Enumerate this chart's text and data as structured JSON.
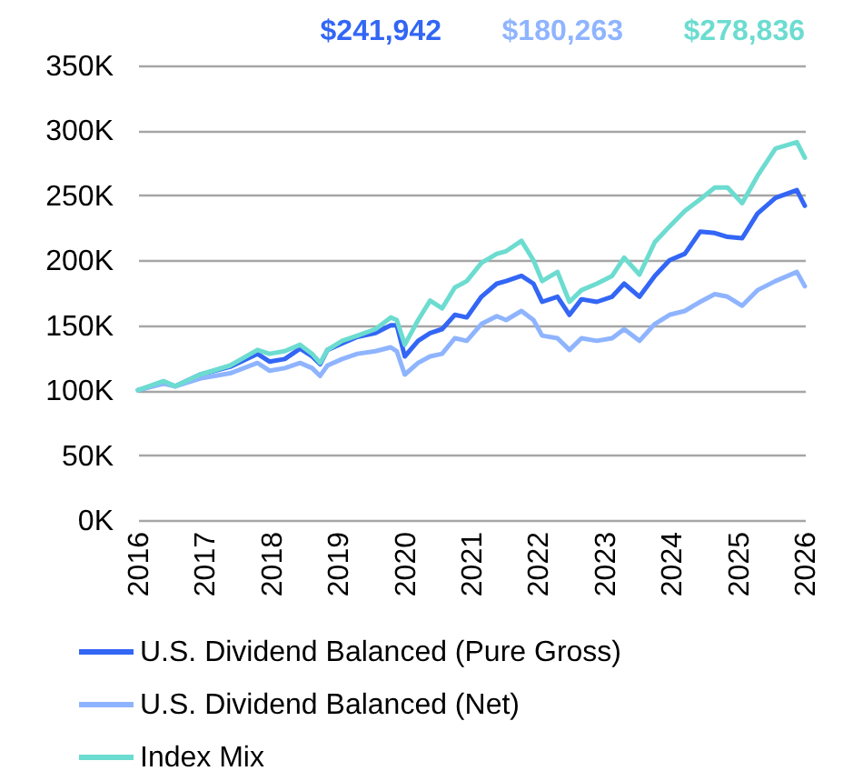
{
  "chart_data": {
    "type": "line",
    "x": [
      2016,
      2016.38,
      2016.56,
      2016.93,
      2017.38,
      2017.79,
      2017.97,
      2018.2,
      2018.43,
      2018.61,
      2018.73,
      2018.84,
      2019.06,
      2019.29,
      2019.56,
      2019.79,
      2019.88,
      2020.0,
      2020.2,
      2020.38,
      2020.56,
      2020.75,
      2020.93,
      2021.15,
      2021.38,
      2021.52,
      2021.75,
      2021.93,
      2022.06,
      2022.29,
      2022.47,
      2022.65,
      2022.88,
      2023.11,
      2023.29,
      2023.52,
      2023.75,
      2023.97,
      2024.2,
      2024.43,
      2024.65,
      2024.84,
      2025.06,
      2025.29,
      2025.56,
      2025.88,
      2026
    ],
    "series": [
      {
        "name": "U.S. Dividend Balanced (Pure Gross)",
        "color": "#3366f5",
        "values": [
          100,
          106,
          103,
          112,
          118,
          128,
          122,
          124,
          132,
          126,
          120,
          131,
          136,
          141,
          144,
          150,
          150,
          126,
          138,
          144,
          147,
          158,
          156,
          172,
          182,
          184,
          188,
          182,
          168,
          172,
          158,
          170,
          168,
          172,
          182,
          172,
          188,
          200,
          205,
          222,
          221,
          218,
          217,
          236,
          248,
          254,
          242
        ]
      },
      {
        "name": "U.S. Dividend Balanced (Net)",
        "color": "#8fb4ff",
        "values": [
          100,
          105,
          103,
          109,
          113,
          121,
          115,
          117,
          121,
          117,
          111,
          119,
          124,
          128,
          130,
          133,
          130,
          112,
          121,
          126,
          128,
          140,
          138,
          151,
          157,
          154,
          161,
          154,
          142,
          140,
          131,
          140,
          138,
          140,
          147,
          138,
          151,
          158,
          161,
          168,
          174,
          172,
          165,
          177,
          184,
          191,
          180
        ]
      },
      {
        "name": "Index Mix",
        "color": "#6cdcd0",
        "values": [
          100,
          107,
          103,
          112,
          119,
          131,
          128,
          130,
          135,
          128,
          121,
          131,
          138,
          142,
          147,
          156,
          154,
          135,
          154,
          169,
          163,
          179,
          184,
          198,
          205,
          207,
          215,
          200,
          184,
          191,
          168,
          177,
          182,
          188,
          202,
          189,
          214,
          226,
          238,
          247,
          256,
          256,
          244,
          265,
          286,
          291,
          279
        ]
      }
    ],
    "annotations": [
      "$241,942",
      "$180,263",
      "$278,836"
    ],
    "xlim": [
      2016,
      2026
    ],
    "xticks": [
      2016,
      2017,
      2018,
      2019,
      2020,
      2021,
      2022,
      2023,
      2024,
      2025,
      2026
    ],
    "ylim": [
      0,
      350
    ],
    "yticks": [
      {
        "value": 0,
        "label": "0K"
      },
      {
        "value": 50,
        "label": "50K"
      },
      {
        "value": 100,
        "label": "100K"
      },
      {
        "value": 150,
        "label": "150K"
      },
      {
        "value": 200,
        "label": "200K"
      },
      {
        "value": 250,
        "label": "250K"
      },
      {
        "value": 300,
        "label": "300K"
      },
      {
        "value": 350,
        "label": "350K"
      }
    ],
    "grid": "y",
    "legend": "bottom",
    "line_style": "solid"
  }
}
